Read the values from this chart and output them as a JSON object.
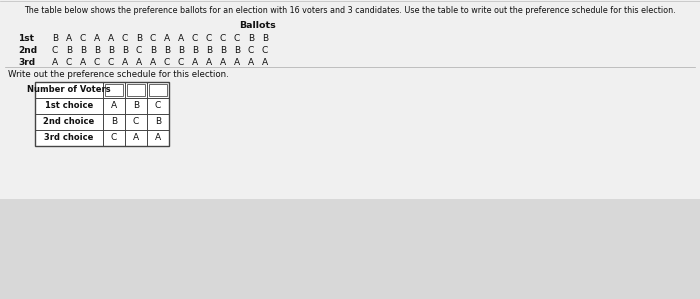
{
  "bg_color": "#d8d8d8",
  "content_bg": "#e8e8e8",
  "title_text": "The table below shows the preference ballots for an election with 16 voters and 3 candidates. Use the table to write out the preference schedule for this election.",
  "ballots_header": "Ballots",
  "row_labels": [
    "1st",
    "2nd",
    "3rd"
  ],
  "ballot_values": [
    [
      "B",
      "A",
      "C",
      "A",
      "A",
      "C",
      "B",
      "C",
      "A",
      "A",
      "C",
      "C",
      "C",
      "C",
      "B",
      "B"
    ],
    [
      "C",
      "B",
      "B",
      "B",
      "B",
      "B",
      "C",
      "B",
      "B",
      "B",
      "B",
      "B",
      "B",
      "B",
      "C",
      "C"
    ],
    [
      "A",
      "C",
      "A",
      "C",
      "C",
      "A",
      "A",
      "A",
      "C",
      "C",
      "A",
      "A",
      "A",
      "A",
      "A",
      "A"
    ]
  ],
  "write_out_text": "Write out the preference schedule for this election.",
  "table_row_labels": [
    "Number of Voters",
    "1st choice",
    "2nd choice",
    "3rd choice"
  ],
  "table_col1": [
    "",
    "A",
    "B",
    "C"
  ],
  "table_col2": [
    "",
    "B",
    "C",
    "A"
  ],
  "table_col3": [
    "",
    "C",
    "B",
    "A"
  ],
  "text_color": "#111111",
  "title_fontsize": 5.8,
  "ballots_fontsize": 6.8,
  "ballot_val_fontsize": 6.5,
  "row_label_fontsize": 6.5,
  "write_out_fontsize": 6.2,
  "table_label_fontsize": 6.0,
  "table_val_fontsize": 6.5
}
